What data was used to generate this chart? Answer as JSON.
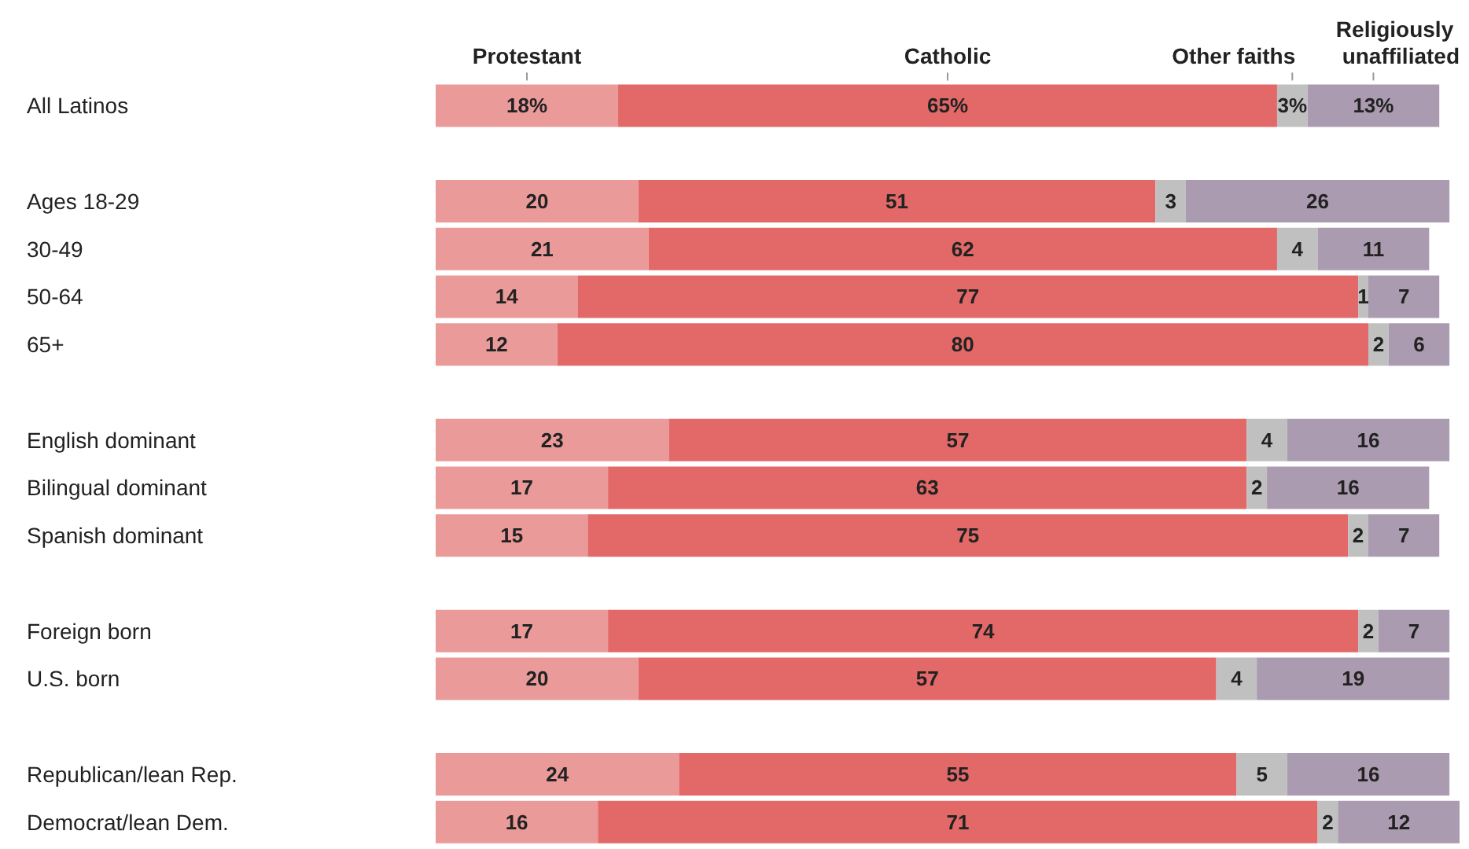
{
  "chart_data": {
    "type": "bar",
    "orientation": "horizontal",
    "stacked": true,
    "categories": [
      "All Latinos",
      null,
      "Ages 18-29",
      "30-49",
      "50-64",
      "65+",
      null,
      "English dominant",
      "Bilingual dominant",
      "Spanish dominant",
      null,
      "Foreign born",
      "U.S. born",
      null,
      "Republican/lean Rep.",
      "Democrat/lean Dem."
    ],
    "series": [
      {
        "name": "Protestant",
        "color": "#eb9a9a",
        "values": [
          18,
          null,
          20,
          21,
          14,
          12,
          null,
          23,
          17,
          15,
          null,
          17,
          20,
          null,
          24,
          16
        ],
        "value_labels": [
          "18%",
          null,
          "20",
          "21",
          "14",
          "12",
          null,
          "23",
          "17",
          "15",
          null,
          "17",
          "20",
          null,
          "24",
          "16"
        ]
      },
      {
        "name": "Catholic",
        "color": "#e36868",
        "values": [
          65,
          null,
          51,
          62,
          77,
          80,
          null,
          57,
          63,
          75,
          null,
          74,
          57,
          null,
          55,
          71
        ],
        "value_labels": [
          "65%",
          null,
          "51",
          "62",
          "77",
          "80",
          null,
          "57",
          "63",
          "75",
          null,
          "74",
          "57",
          null,
          "55",
          "71"
        ]
      },
      {
        "name": "Other faiths",
        "color": "#c0c0c0",
        "values": [
          3,
          null,
          3,
          4,
          1,
          2,
          null,
          4,
          2,
          2,
          null,
          2,
          4,
          null,
          5,
          2
        ],
        "value_labels": [
          "3%",
          null,
          "3",
          "4",
          "1",
          "2",
          null,
          "4",
          "2",
          "2",
          null,
          "2",
          "4",
          null,
          "5",
          "2"
        ]
      },
      {
        "name": "Religiously unaffiliated",
        "color": "#ab9bb0",
        "values": [
          13,
          null,
          26,
          11,
          7,
          6,
          null,
          16,
          16,
          7,
          null,
          7,
          19,
          null,
          16,
          12
        ],
        "value_labels": [
          "13%",
          null,
          "26",
          "11",
          "7",
          "6",
          null,
          "16",
          "16",
          "7",
          null,
          "7",
          "19",
          null,
          "16",
          "12"
        ]
      }
    ]
  }
}
